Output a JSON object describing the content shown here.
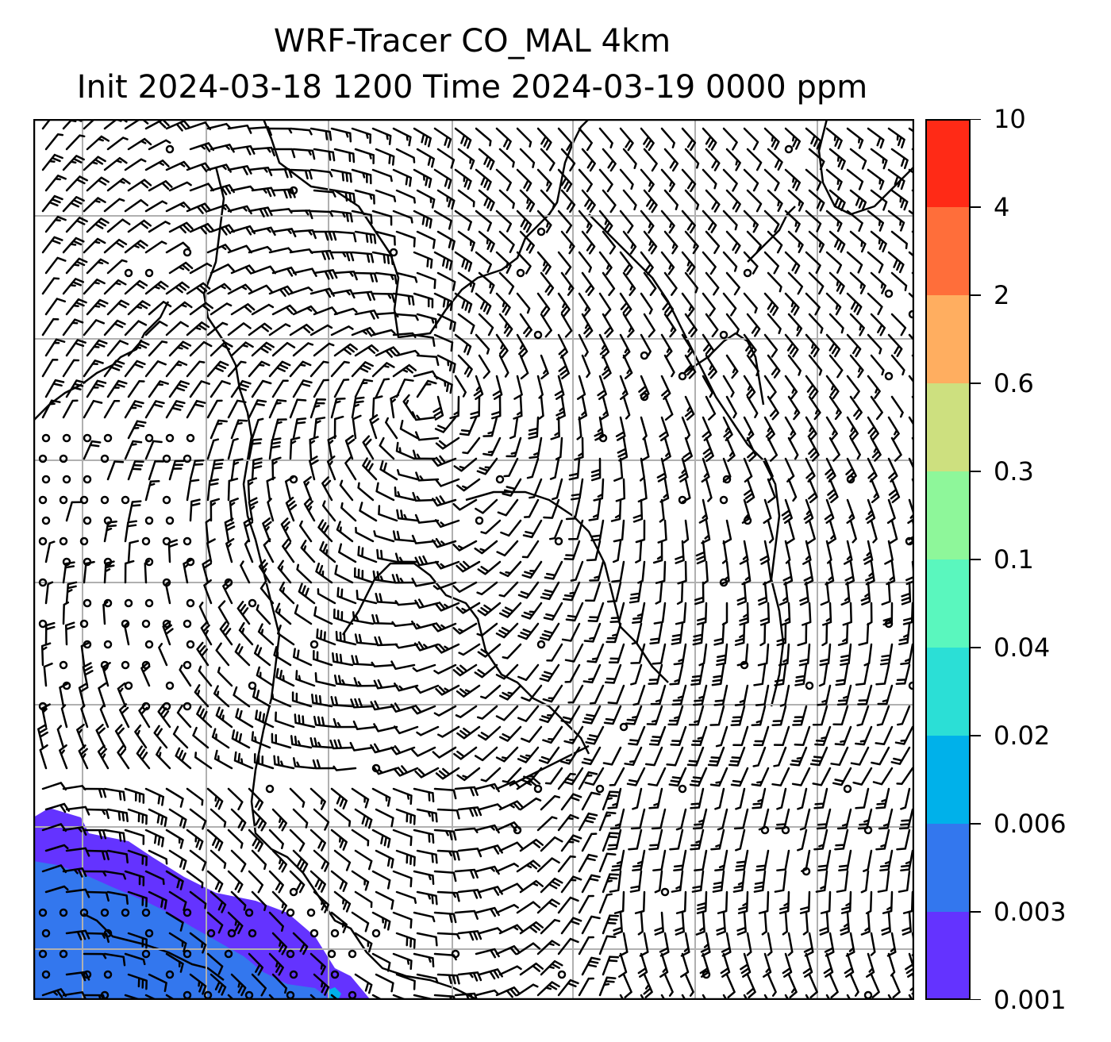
{
  "title": {
    "line1": "WRF-Tracer CO_MAL 4km",
    "line2": "Init 2024-03-18 1200 Time 2024-03-19 0000 ppm"
  },
  "colorbar": {
    "levels": [
      "10",
      "4",
      "2",
      "0.6",
      "0.3",
      "0.1",
      "0.04",
      "0.02",
      "0.006",
      "0.003",
      "0.001"
    ],
    "colors": [
      "#ff2a16",
      "#ff6e3a",
      "#ffae60",
      "#cde07f",
      "#8ef79a",
      "#5af7be",
      "#2bdfd6",
      "#00b1ea",
      "#3377ee",
      "#6433ff"
    ]
  },
  "map": {
    "gridlines": true,
    "plume_colors": [
      "#6433ff",
      "#3377ee",
      "#00b1ea"
    ]
  }
}
